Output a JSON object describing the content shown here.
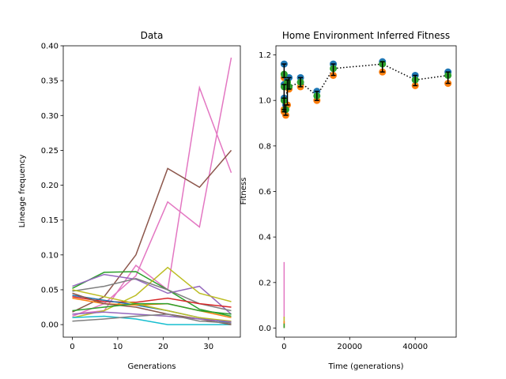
{
  "chart_data": [
    {
      "type": "line",
      "title": "Data",
      "xlabel": "Generations",
      "ylabel": "Lineage frequency",
      "xlim": [
        -2,
        37
      ],
      "ylim": [
        -0.018,
        0.4
      ],
      "x_ticks": [
        0,
        10,
        20,
        30
      ],
      "y_ticks": [
        0.0,
        0.05,
        0.1,
        0.15,
        0.2,
        0.25,
        0.3,
        0.35,
        0.4
      ],
      "y_tick_labels": [
        "0.00",
        "0.05",
        "0.10",
        "0.15",
        "0.20",
        "0.25",
        "0.30",
        "0.35",
        "0.40"
      ],
      "grid": false,
      "series": [
        {
          "color": "#e377c2",
          "x": [
            0,
            7,
            14,
            21,
            28,
            35
          ],
          "values": [
            0.012,
            0.03,
            0.07,
            0.176,
            0.14,
            0.383
          ]
        },
        {
          "color": "#e377c2",
          "x": [
            0,
            7,
            14,
            21,
            28,
            35
          ],
          "values": [
            0.015,
            0.02,
            0.085,
            0.05,
            0.34,
            0.218
          ]
        },
        {
          "color": "#8c564b",
          "x": [
            0,
            7,
            14,
            21,
            28,
            35
          ],
          "values": [
            0.018,
            0.04,
            0.1,
            0.224,
            0.197,
            0.25
          ]
        },
        {
          "color": "#2ca02c",
          "x": [
            0,
            7,
            14,
            21,
            28,
            35
          ],
          "values": [
            0.052,
            0.075,
            0.076,
            0.05,
            0.022,
            0.012
          ]
        },
        {
          "color": "#9467bd",
          "x": [
            0,
            7,
            14,
            21,
            28,
            35
          ],
          "values": [
            0.055,
            0.072,
            0.065,
            0.045,
            0.055,
            0.015
          ]
        },
        {
          "color": "#bcbd22",
          "x": [
            0,
            7,
            14,
            21,
            28,
            35
          ],
          "values": [
            0.01,
            0.02,
            0.042,
            0.082,
            0.045,
            0.033
          ]
        },
        {
          "color": "#7f7f7f",
          "x": [
            0,
            7,
            14,
            21,
            28,
            35
          ],
          "values": [
            0.048,
            0.055,
            0.066,
            0.05,
            0.03,
            0.02
          ]
        },
        {
          "color": "#d62728",
          "x": [
            0,
            7,
            14,
            21,
            28,
            35
          ],
          "values": [
            0.04,
            0.033,
            0.032,
            0.038,
            0.03,
            0.025
          ]
        },
        {
          "color": "#1f77b4",
          "x": [
            0,
            7,
            14,
            21,
            28,
            35
          ],
          "values": [
            0.042,
            0.035,
            0.028,
            0.02,
            0.01,
            0.002
          ]
        },
        {
          "color": "#ff7f0e",
          "x": [
            0,
            7,
            14,
            21,
            28,
            35
          ],
          "values": [
            0.038,
            0.03,
            0.028,
            0.03,
            0.02,
            0.01
          ]
        },
        {
          "color": "#17becf",
          "x": [
            0,
            7,
            14,
            21,
            28,
            35
          ],
          "values": [
            0.01,
            0.012,
            0.008,
            0.0,
            0.0,
            0.0
          ]
        },
        {
          "color": "#8c564b",
          "x": [
            0,
            7,
            14,
            21,
            28,
            35
          ],
          "values": [
            0.045,
            0.03,
            0.025,
            0.015,
            0.008,
            0.0
          ]
        },
        {
          "color": "#bcbd22",
          "x": [
            0,
            7,
            14,
            21,
            28,
            35
          ],
          "values": [
            0.05,
            0.04,
            0.03,
            0.02,
            0.01,
            0.005
          ]
        },
        {
          "color": "#9467bd",
          "x": [
            0,
            7,
            14,
            21,
            28,
            35
          ],
          "values": [
            0.015,
            0.018,
            0.015,
            0.012,
            0.008,
            0.004
          ]
        },
        {
          "color": "#7f7f7f",
          "x": [
            0,
            7,
            14,
            21,
            28,
            35
          ],
          "values": [
            0.005,
            0.008,
            0.012,
            0.015,
            0.005,
            0.002
          ]
        },
        {
          "color": "#2ca02c",
          "x": [
            0,
            7,
            14,
            21,
            28,
            35
          ],
          "values": [
            0.02,
            0.025,
            0.03,
            0.03,
            0.02,
            0.015
          ]
        }
      ]
    },
    {
      "type": "scatter",
      "title": "Home Environment Inferred Fitness",
      "xlabel": "Time (generations)",
      "ylabel": "Fitness",
      "xlim": [
        -2500,
        52500
      ],
      "ylim": [
        -0.04,
        1.24
      ],
      "x_ticks": [
        0,
        20000,
        40000
      ],
      "x_tick_labels": [
        "0",
        "20000",
        "40000"
      ],
      "y_ticks": [
        0.0,
        0.2,
        0.4,
        0.6,
        0.8,
        1.0,
        1.2
      ],
      "y_tick_labels": [
        "0.0",
        "0.2",
        "0.4",
        "0.6",
        "0.8",
        "1.0",
        "1.2"
      ],
      "grid": false,
      "points": [
        {
          "x": 0,
          "fitness": 1.115,
          "low": 1.1,
          "high": 1.16
        },
        {
          "x": 0,
          "fitness": 1.06,
          "low": 0.96,
          "high": 1.07
        },
        {
          "x": 0,
          "fitness": 1.0,
          "low": 0.95,
          "high": 1.01
        },
        {
          "x": 500,
          "fitness": 0.96,
          "low": 0.935,
          "high": 0.98
        },
        {
          "x": 1000,
          "fitness": 1.08,
          "low": 0.98,
          "high": 1.09
        },
        {
          "x": 1500,
          "fitness": 1.06,
          "low": 1.05,
          "high": 1.1
        },
        {
          "x": 5000,
          "fitness": 1.08,
          "low": 1.06,
          "high": 1.1
        },
        {
          "x": 10000,
          "fitness": 1.02,
          "low": 1.0,
          "high": 1.04
        },
        {
          "x": 15000,
          "fitness": 1.14,
          "low": 1.11,
          "high": 1.16
        },
        {
          "x": 30000,
          "fitness": 1.16,
          "low": 1.125,
          "high": 1.17
        },
        {
          "x": 40000,
          "fitness": 1.09,
          "low": 1.065,
          "high": 1.11
        },
        {
          "x": 50000,
          "fitness": 1.11,
          "low": 1.075,
          "high": 1.125
        }
      ],
      "trend": [
        {
          "x": 0,
          "y": 1.0
        },
        {
          "x": 500,
          "y": 0.96
        },
        {
          "x": 1000,
          "y": 1.08
        },
        {
          "x": 1500,
          "y": 1.06
        },
        {
          "x": 5000,
          "y": 1.08
        },
        {
          "x": 10000,
          "y": 1.02
        },
        {
          "x": 15000,
          "y": 1.14
        },
        {
          "x": 30000,
          "y": 1.16
        },
        {
          "x": 40000,
          "y": 1.09
        },
        {
          "x": 50000,
          "y": 1.11
        }
      ],
      "near_zero_lines": [
        {
          "color": "#e377c2",
          "x": 0,
          "low": 0.0,
          "high": 0.29
        },
        {
          "color": "#bcbd22",
          "x": 0,
          "low": 0.0,
          "high": 0.05
        },
        {
          "color": "#ff7f0e",
          "x": 0,
          "low": 0.0,
          "high": 0.03
        },
        {
          "color": "#2ca02c",
          "x": 0,
          "low": 0.0,
          "high": 0.02
        }
      ],
      "colors": {
        "high": "#1f77b4",
        "low": "#ff7f0e",
        "center": "#2ca02c",
        "trend": "#000000"
      }
    }
  ]
}
